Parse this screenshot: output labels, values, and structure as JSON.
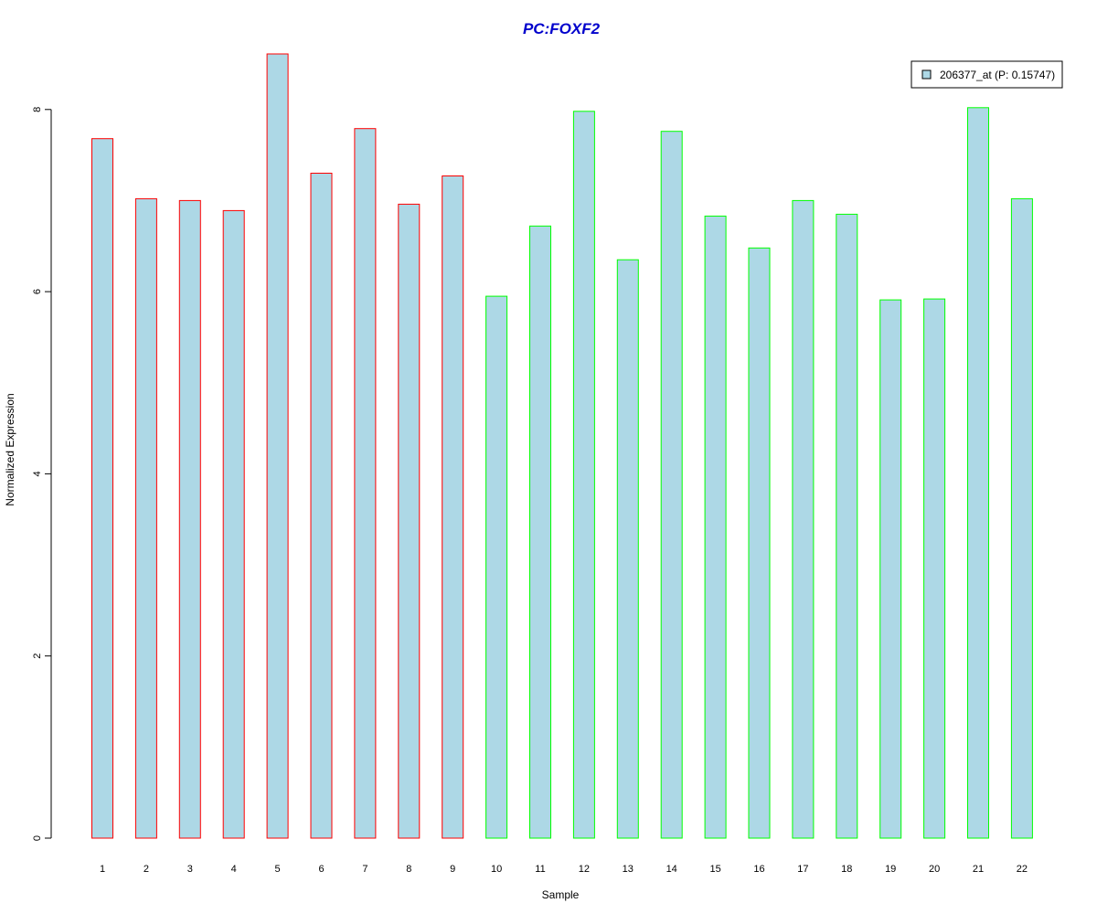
{
  "chart_data": {
    "type": "bar",
    "title": "PC:FOXF2",
    "xlabel": "Sample",
    "ylabel": "Normalized Expression",
    "categories": [
      "1",
      "2",
      "3",
      "4",
      "5",
      "6",
      "7",
      "8",
      "9",
      "10",
      "11",
      "12",
      "13",
      "14",
      "15",
      "16",
      "17",
      "18",
      "19",
      "20",
      "21",
      "22"
    ],
    "values": [
      7.68,
      7.02,
      7.0,
      6.89,
      8.61,
      7.3,
      7.79,
      6.96,
      7.27,
      5.95,
      6.72,
      7.98,
      6.35,
      7.76,
      6.83,
      6.48,
      7.0,
      6.85,
      5.91,
      5.92,
      8.02,
      7.02
    ],
    "groups": [
      "red",
      "red",
      "red",
      "red",
      "red",
      "red",
      "red",
      "red",
      "red",
      "green",
      "green",
      "green",
      "green",
      "green",
      "green",
      "green",
      "green",
      "green",
      "green",
      "green",
      "green",
      "green"
    ],
    "yticks": [
      0,
      2,
      4,
      6,
      8
    ],
    "ylim": [
      0,
      8.61
    ],
    "grid": false,
    "legend": {
      "position": "top-right",
      "entries": [
        "206377_at (P: 0.15747)"
      ]
    },
    "colors": {
      "fill": "#add8e6",
      "red": "#ff0000",
      "green": "#00ff00",
      "title": "#0000cc",
      "axis": "#000000"
    }
  }
}
